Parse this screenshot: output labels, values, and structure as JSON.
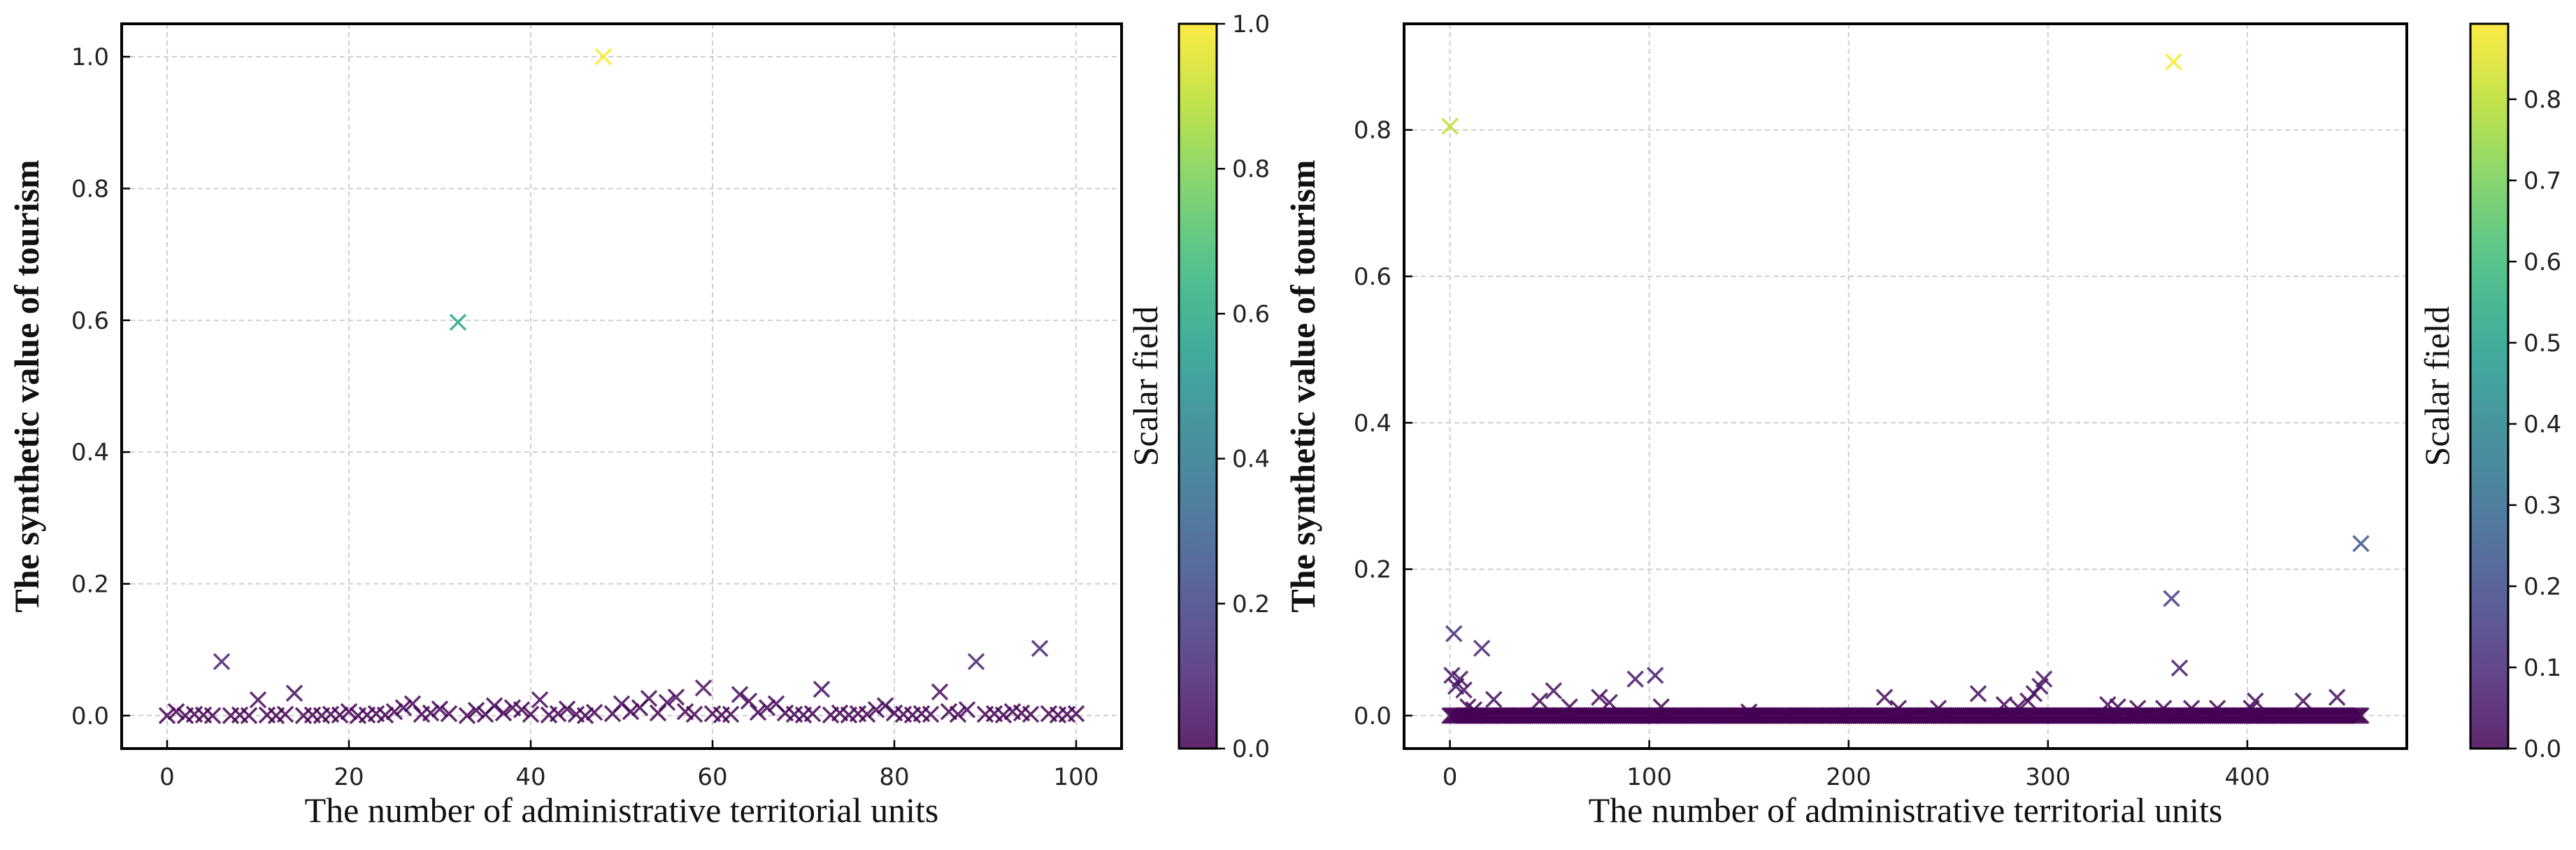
{
  "chart_data": [
    {
      "type": "scatter",
      "marker": "x",
      "colormap": "viridis",
      "title": "",
      "xlabel": "The number of administrative territorial units",
      "ylabel": "The synthetic value of tourism",
      "xlim": [
        -5,
        105
      ],
      "ylim": [
        -0.05,
        1.05
      ],
      "xticks": [
        0,
        20,
        40,
        60,
        80,
        100
      ],
      "xtick_labels": [
        "0",
        "20",
        "40",
        "60",
        "80",
        "100"
      ],
      "yticks": [
        0.0,
        0.2,
        0.4,
        0.6,
        0.8,
        1.0
      ],
      "ytick_labels": [
        "0.0",
        "0.2",
        "0.4",
        "0.6",
        "0.8",
        "1.0"
      ],
      "grid": true,
      "colorbar": {
        "label": "Scalar field",
        "range": [
          0,
          1.0
        ],
        "ticks": [
          0.0,
          0.2,
          0.4,
          0.6,
          0.8,
          1.0
        ],
        "tick_labels": [
          "0.0",
          "0.2",
          "0.4",
          "0.6",
          "0.8",
          "1.0"
        ]
      },
      "x": [
        0,
        1,
        2,
        3,
        4,
        5,
        6,
        7,
        8,
        9,
        10,
        11,
        12,
        13,
        14,
        15,
        16,
        17,
        18,
        19,
        20,
        21,
        22,
        23,
        24,
        25,
        26,
        27,
        28,
        29,
        30,
        31,
        32,
        33,
        34,
        35,
        36,
        37,
        38,
        39,
        40,
        41,
        42,
        43,
        44,
        45,
        46,
        47,
        48,
        49,
        50,
        51,
        52,
        53,
        54,
        55,
        56,
        57,
        58,
        59,
        60,
        61,
        62,
        63,
        64,
        65,
        66,
        67,
        68,
        69,
        70,
        71,
        72,
        73,
        74,
        75,
        76,
        77,
        78,
        79,
        80,
        81,
        82,
        83,
        84,
        85,
        86,
        87,
        88,
        89,
        90,
        91,
        92,
        93,
        94,
        95,
        96,
        97,
        98,
        99,
        100
      ],
      "y": [
        0.0,
        0.006,
        0.0,
        0.002,
        0.001,
        0.0,
        0.082,
        0.0,
        0.001,
        0.0,
        0.024,
        0.001,
        0.0,
        0.002,
        0.034,
        0.0,
        0.001,
        0.0,
        0.002,
        0.001,
        0.006,
        0.0,
        0.001,
        0.003,
        0.001,
        0.006,
        0.012,
        0.018,
        0.002,
        0.004,
        0.01,
        0.003,
        0.597,
        0.0,
        0.008,
        0.002,
        0.015,
        0.004,
        0.012,
        0.009,
        0.002,
        0.024,
        0.001,
        0.003,
        0.01,
        0.002,
        0.0,
        0.005,
        1.0,
        0.003,
        0.018,
        0.006,
        0.012,
        0.026,
        0.004,
        0.02,
        0.028,
        0.006,
        0.002,
        0.042,
        0.003,
        0.001,
        0.002,
        0.032,
        0.022,
        0.005,
        0.012,
        0.018,
        0.004,
        0.002,
        0.001,
        0.003,
        0.04,
        0.001,
        0.004,
        0.001,
        0.003,
        0.002,
        0.009,
        0.015,
        0.004,
        0.002,
        0.001,
        0.003,
        0.002,
        0.036,
        0.006,
        0.002,
        0.009,
        0.082,
        0.002,
        0.003,
        0.001,
        0.006,
        0.004,
        0.002,
        0.102,
        0.003,
        0.001,
        0.002,
        0.003
      ]
    },
    {
      "type": "scatter",
      "marker": "x",
      "colormap": "viridis",
      "title": "",
      "xlabel": "The number of administrative territorial units",
      "ylabel": "The synthetic value of tourism",
      "xlim": [
        -23,
        480
      ],
      "ylim": [
        -0.045,
        0.945
      ],
      "xticks": [
        0,
        100,
        200,
        300,
        400
      ],
      "xtick_labels": [
        "0",
        "100",
        "200",
        "300",
        "400"
      ],
      "yticks": [
        0.0,
        0.2,
        0.4,
        0.6,
        0.8
      ],
      "ytick_labels": [
        "0.0",
        "0.2",
        "0.4",
        "0.6",
        "0.8"
      ],
      "grid": true,
      "colorbar": {
        "label": "Scalar field",
        "range": [
          0,
          0.893
        ],
        "ticks": [
          0.0,
          0.1,
          0.2,
          0.3,
          0.4,
          0.5,
          0.6,
          0.7,
          0.8
        ],
        "tick_labels": [
          "0.0",
          "0.1",
          "0.2",
          "0.3",
          "0.4",
          "0.5",
          "0.6",
          "0.7",
          "0.8"
        ]
      },
      "baseline": {
        "x_start": 0,
        "x_end": 457,
        "y": 0.0
      },
      "points": [
        {
          "x": 0,
          "y": 0.805
        },
        {
          "x": 1,
          "y": 0.055
        },
        {
          "x": 2,
          "y": 0.112
        },
        {
          "x": 3,
          "y": 0.04
        },
        {
          "x": 5,
          "y": 0.05
        },
        {
          "x": 7,
          "y": 0.035
        },
        {
          "x": 9,
          "y": 0.012
        },
        {
          "x": 12,
          "y": 0.008
        },
        {
          "x": 16,
          "y": 0.092
        },
        {
          "x": 22,
          "y": 0.022
        },
        {
          "x": 45,
          "y": 0.02
        },
        {
          "x": 52,
          "y": 0.034
        },
        {
          "x": 60,
          "y": 0.012
        },
        {
          "x": 75,
          "y": 0.025
        },
        {
          "x": 80,
          "y": 0.018
        },
        {
          "x": 93,
          "y": 0.05
        },
        {
          "x": 103,
          "y": 0.055
        },
        {
          "x": 106,
          "y": 0.012
        },
        {
          "x": 150,
          "y": 0.005
        },
        {
          "x": 218,
          "y": 0.025
        },
        {
          "x": 225,
          "y": 0.01
        },
        {
          "x": 245,
          "y": 0.01
        },
        {
          "x": 265,
          "y": 0.03
        },
        {
          "x": 278,
          "y": 0.015
        },
        {
          "x": 285,
          "y": 0.012
        },
        {
          "x": 290,
          "y": 0.02
        },
        {
          "x": 293,
          "y": 0.03
        },
        {
          "x": 296,
          "y": 0.04
        },
        {
          "x": 298,
          "y": 0.05
        },
        {
          "x": 330,
          "y": 0.015
        },
        {
          "x": 335,
          "y": 0.012
        },
        {
          "x": 345,
          "y": 0.01
        },
        {
          "x": 358,
          "y": 0.01
        },
        {
          "x": 362,
          "y": 0.16
        },
        {
          "x": 363,
          "y": 0.893
        },
        {
          "x": 366,
          "y": 0.065
        },
        {
          "x": 372,
          "y": 0.01
        },
        {
          "x": 385,
          "y": 0.01
        },
        {
          "x": 402,
          "y": 0.01
        },
        {
          "x": 404,
          "y": 0.02
        },
        {
          "x": 428,
          "y": 0.02
        },
        {
          "x": 445,
          "y": 0.025
        },
        {
          "x": 457,
          "y": 0.235
        }
      ]
    }
  ]
}
